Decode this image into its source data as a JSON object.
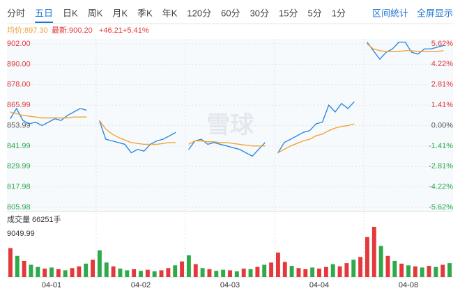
{
  "tabs": [
    "分时",
    "五日",
    "日K",
    "周K",
    "月K",
    "季K",
    "年K",
    "120分",
    "60分",
    "30分",
    "15分",
    "5分",
    "1分"
  ],
  "selected_tab": "五日",
  "actions": [
    "区间统计",
    "全屏显示"
  ],
  "info": {
    "average": "均价:897.30",
    "latest": "最新:900.20",
    "change": "+46.21",
    "change_pct": "+5.41%"
  },
  "watermark": "雪球",
  "chart_data": [
    {
      "type": "line",
      "series": [
        {
          "color": "#2b8ae2",
          "values": [
            858,
            864,
            857,
            855,
            856,
            854,
            856,
            858,
            857,
            860,
            862,
            864,
            863,
            null,
            857,
            846,
            845,
            844,
            843,
            838,
            840,
            839,
            843,
            845,
            846,
            848,
            850,
            null,
            839.9,
            845,
            846,
            843,
            844,
            843,
            842,
            841,
            840,
            838,
            836,
            840,
            844,
            null,
            837.8,
            844,
            846,
            848,
            850,
            851,
            855,
            856,
            866,
            862,
            867,
            864,
            868,
            null,
            903,
            898,
            893,
            897,
            899,
            903,
            903,
            897,
            896,
            899,
            899,
            900,
            901,
            null
          ]
        },
        {
          "color": "#f2a33a",
          "values": [
            862,
            861,
            860,
            859.5,
            859,
            858.5,
            858.5,
            858.5,
            858.5,
            858.5,
            859,
            859,
            859,
            null,
            857,
            852,
            849,
            847,
            845.5,
            844,
            843.5,
            843,
            843,
            843,
            843.5,
            844,
            844,
            null,
            843,
            845,
            845,
            844.5,
            844.5,
            844,
            844,
            843.5,
            843,
            842.5,
            842,
            842,
            842,
            null,
            838,
            840,
            842,
            843.5,
            845,
            846,
            848,
            849,
            851,
            852.5,
            853.5,
            854,
            855,
            null,
            902,
            899,
            898,
            897.5,
            897.5,
            897.5,
            898,
            898,
            897.5,
            897.5,
            897.5,
            897.5,
            898,
            null
          ]
        }
      ],
      "ylim": [
        805.98,
        902
      ],
      "yticks": [
        {
          "value": 902,
          "label": "902.00"
        },
        {
          "value": 890,
          "label": "890.00"
        },
        {
          "value": 878,
          "label": "878.00"
        },
        865.99,
        853.99,
        841.99,
        829.99,
        817.98,
        805.98
      ],
      "y2lim": [
        -5.62,
        5.62
      ],
      "y2ticks": [
        {
          "value": 5.62,
          "label": "5.62%"
        },
        {
          "value": 4.22,
          "label": "4.22%"
        },
        {
          "value": 2.81,
          "label": "2.81%"
        },
        {
          "value": 1.41,
          "label": "1.41%"
        },
        {
          "value": 0,
          "label": "0.00%"
        },
        {
          "value": -1.41,
          "label": "-1.41%"
        },
        {
          "value": -2.81,
          "label": "-2.81%"
        },
        {
          "value": -4.22,
          "label": "-4.22%"
        },
        {
          "value": -5.62,
          "label": "-5.62%"
        }
      ],
      "grid": true
    },
    {
      "type": "bar",
      "title": "成交量 66251手",
      "categories": [
        null,
        null,
        null,
        null,
        null,
        null,
        "04-01",
        null,
        null,
        null,
        null,
        null,
        null,
        null,
        null,
        null,
        null,
        null,
        null,
        "04-02",
        null,
        null,
        null,
        null,
        null,
        null,
        null,
        null,
        null,
        null,
        null,
        null,
        "04-03",
        null,
        null,
        null,
        null,
        null,
        null,
        null,
        null,
        null,
        null,
        null,
        null,
        "04-04",
        null,
        null,
        null,
        null,
        null,
        null,
        null,
        null,
        null,
        null,
        null,
        null,
        "04-08",
        null,
        null,
        null,
        null,
        null,
        null
      ],
      "values": [
        5200,
        3800,
        2900,
        2200,
        1800,
        1500,
        1700,
        1400,
        1200,
        1600,
        1900,
        2400,
        3100,
        4800,
        2600,
        1900,
        1500,
        1200,
        1400,
        1100,
        1300,
        1000,
        1200,
        1600,
        2100,
        2800,
        3900,
        2300,
        1600,
        1400,
        1100,
        1300,
        1200,
        1000,
        1500,
        1400,
        1800,
        2200,
        2600,
        4400,
        2700,
        2000,
        1600,
        1400,
        1700,
        1500,
        1800,
        2300,
        1900,
        2500,
        3100,
        3600,
        7200,
        9049.99,
        5600,
        3800,
        2900,
        2400,
        2100,
        1900,
        1700,
        2000,
        1800,
        2200,
        2500
      ],
      "colors": [
        "#e4393c",
        "#2eaa4a",
        "#e4393c",
        "#2eaa4a",
        "#2eaa4a",
        "#e4393c",
        "#2eaa4a",
        "#e4393c",
        "#2eaa4a",
        "#e4393c",
        "#e4393c",
        "#2eaa4a",
        "#e4393c",
        "#2eaa4a",
        "#2eaa4a",
        "#e4393c",
        "#2eaa4a",
        "#2eaa4a",
        "#e4393c",
        "#2eaa4a",
        "#e4393c",
        "#2eaa4a",
        "#e4393c",
        "#e4393c",
        "#2eaa4a",
        "#e4393c",
        "#2eaa4a",
        "#e4393c",
        "#2eaa4a",
        "#e4393c",
        "#2eaa4a",
        "#2eaa4a",
        "#e4393c",
        "#2eaa4a",
        "#e4393c",
        "#2eaa4a",
        "#e4393c",
        "#2eaa4a",
        "#e4393c",
        "#e4393c",
        "#e4393c",
        "#2eaa4a",
        "#e4393c",
        "#e4393c",
        "#2eaa4a",
        "#e4393c",
        "#e4393c",
        "#2eaa4a",
        "#e4393c",
        "#e4393c",
        "#2eaa4a",
        "#e4393c",
        "#e4393c",
        "#e4393c",
        "#2eaa4a",
        "#e4393c",
        "#2eaa4a",
        "#e4393c",
        "#2eaa4a",
        "#e4393c",
        "#2eaa4a",
        "#e4393c",
        "#2eaa4a",
        "#e4393c",
        "#2eaa4a"
      ],
      "ylim": [
        0,
        9049.99
      ],
      "yticks": [
        9049.99
      ]
    }
  ]
}
